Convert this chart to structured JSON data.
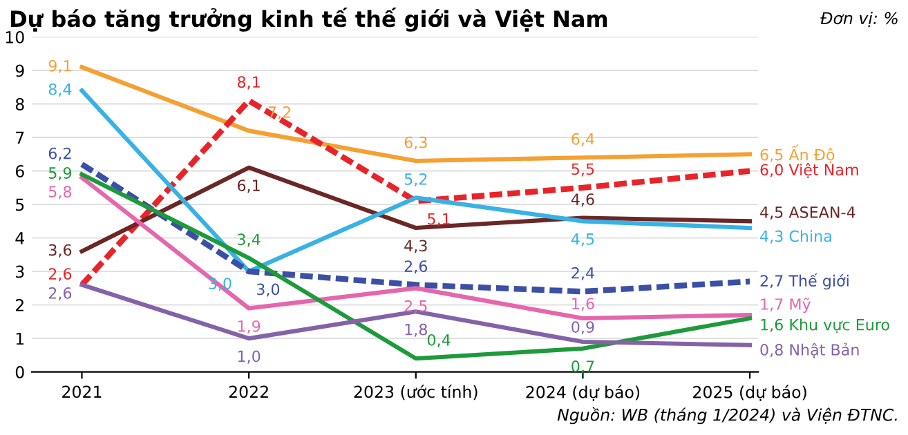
{
  "chart_data": {
    "type": "line",
    "title": "Dự báo tăng trưởng kinh tế thế giới và Việt Nam",
    "categories": [
      "2021",
      "2022",
      "2023 (ước tính)",
      "2024 (dự báo)",
      "2025 (dự báo)"
    ],
    "ylim": [
      0,
      10
    ],
    "yticks": [
      0,
      1,
      2,
      3,
      4,
      5,
      6,
      7,
      8,
      9,
      10
    ],
    "grid": "y",
    "legend": false,
    "marker": "none",
    "series": [
      {
        "name": "Ấn Độ",
        "color": "#f5a033",
        "values": [
          9.1,
          7.2,
          6.3,
          6.4,
          6.5
        ],
        "value_labels": [
          "9,1",
          "7,2",
          "6,3",
          "6,4",
          "6,5"
        ]
      },
      {
        "name": "Việt Nam",
        "color": "#e8242a",
        "line_style": "dashed",
        "values": [
          2.6,
          8.1,
          5.1,
          5.5,
          6.0
        ],
        "value_labels": [
          "2,6",
          "8,1",
          "5,1",
          "5,5",
          "6,0"
        ]
      },
      {
        "name": "ASEAN-4",
        "color": "#6b2626",
        "values": [
          3.6,
          6.1,
          4.3,
          4.6,
          4.5
        ],
        "value_labels": [
          "3,6",
          "6,1",
          "4,3",
          "4,6",
          "4,5"
        ]
      },
      {
        "name": "China",
        "color": "#38b2e4",
        "values": [
          8.4,
          3.0,
          5.2,
          4.5,
          4.3
        ],
        "value_labels": [
          "8,4",
          "3,0",
          "5,2",
          "4,5",
          "4,3"
        ]
      },
      {
        "name": "Thế giới",
        "color": "#3a4fa5",
        "line_style": "dashed",
        "values": [
          6.2,
          3.0,
          2.6,
          2.4,
          2.7
        ],
        "value_labels": [
          "6,2",
          "3,0",
          "2,6",
          "2,4",
          "2,7"
        ]
      },
      {
        "name": "Mỹ",
        "color": "#e566ad",
        "values": [
          5.8,
          1.9,
          2.5,
          1.6,
          1.7
        ],
        "value_labels": [
          "5,8",
          "1,9",
          "2,5",
          "1,6",
          "1,7"
        ]
      },
      {
        "name": "Khu vực Euro",
        "color": "#1d9a3b",
        "values": [
          5.9,
          3.4,
          0.4,
          0.7,
          1.6
        ],
        "value_labels": [
          "5,9",
          "3,4",
          "0,4",
          "0,7",
          "1,6"
        ]
      },
      {
        "name": "Nhật Bản",
        "color": "#8462a8",
        "values": [
          2.6,
          1.0,
          1.8,
          0.9,
          0.8
        ],
        "value_labels": [
          "2,6",
          "1,0",
          "1,8",
          "0,9",
          "0,8"
        ]
      }
    ],
    "annotations": [
      "Đơn vị: %",
      "Nguồn: WB (tháng 1/2024) và Viện ĐTNC."
    ]
  }
}
